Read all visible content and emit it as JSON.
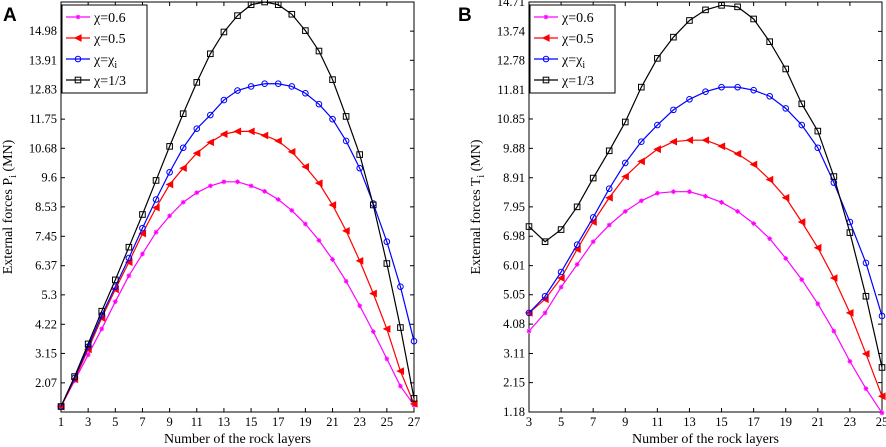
{
  "chart_data": [
    {
      "panel_label": "A",
      "type": "line",
      "xlabel": "Number of the rock layers",
      "ylabel_main": "External forces P",
      "ylabel_sub": "i",
      "ylabel_unit": " (MN)",
      "xlim": [
        1,
        27
      ],
      "ylim": [
        1.0,
        16.05
      ],
      "xticks": [
        1,
        3,
        5,
        7,
        9,
        11,
        13,
        15,
        17,
        19,
        21,
        23,
        25,
        27
      ],
      "yticks": [
        1.0,
        2.07,
        3.15,
        4.22,
        5.3,
        6.37,
        7.45,
        8.53,
        9.6,
        10.68,
        11.75,
        12.83,
        13.91,
        14.98
      ],
      "ytick_labels": [
        "",
        "2.07",
        "3.15",
        "4.22",
        "5.3",
        "6.37",
        "7.45",
        "8.53",
        "9.6",
        "10.68",
        "11.75",
        "12.83",
        "13.91",
        "14.98"
      ],
      "legend_position": "top-left",
      "legend_labels": [
        {
          "main": "χ=0.6",
          "sub": ""
        },
        {
          "main": "χ=0.5",
          "sub": ""
        },
        {
          "main": "χ=χ",
          "sub": "i"
        },
        {
          "main": "χ=1/3",
          "sub": ""
        }
      ],
      "series": [
        {
          "name": "χ=0.6",
          "marker": "star",
          "color": "#ff00ff",
          "x": [
            1,
            2,
            3,
            4,
            5,
            6,
            7,
            8,
            9,
            10,
            11,
            12,
            13,
            14,
            15,
            16,
            17,
            18,
            19,
            20,
            21,
            22,
            23,
            24,
            25,
            26,
            27
          ],
          "values": [
            1.2,
            2.15,
            3.1,
            4.05,
            5.05,
            6.0,
            6.8,
            7.6,
            8.2,
            8.7,
            9.05,
            9.3,
            9.45,
            9.45,
            9.3,
            9.1,
            8.8,
            8.4,
            7.9,
            7.3,
            6.6,
            5.8,
            4.9,
            3.95,
            2.95,
            1.95,
            1.25
          ]
        },
        {
          "name": "χ=0.5",
          "marker": "triangle-left",
          "color": "#ff0000",
          "x": [
            1,
            2,
            3,
            4,
            5,
            6,
            7,
            8,
            9,
            10,
            11,
            12,
            13,
            14,
            15,
            16,
            17,
            18,
            19,
            20,
            21,
            22,
            23,
            24,
            25,
            26,
            27
          ],
          "values": [
            1.2,
            2.2,
            3.3,
            4.45,
            5.5,
            6.5,
            7.55,
            8.5,
            9.35,
            9.95,
            10.5,
            10.9,
            11.2,
            11.3,
            11.3,
            11.15,
            10.95,
            10.55,
            10.0,
            9.4,
            8.6,
            7.65,
            6.55,
            5.35,
            4.05,
            2.5,
            1.3
          ]
        },
        {
          "name": "χ=χi",
          "marker": "circle",
          "color": "#0000ff",
          "x": [
            1,
            2,
            3,
            4,
            5,
            6,
            7,
            8,
            9,
            10,
            11,
            12,
            13,
            14,
            15,
            16,
            17,
            18,
            19,
            20,
            21,
            22,
            23,
            24,
            25,
            26,
            27
          ],
          "values": [
            1.2,
            2.25,
            3.4,
            4.55,
            5.6,
            6.65,
            7.75,
            8.8,
            9.8,
            10.7,
            11.4,
            11.9,
            12.45,
            12.8,
            12.95,
            13.05,
            13.05,
            12.95,
            12.7,
            12.3,
            11.75,
            10.95,
            9.95,
            8.65,
            7.25,
            5.6,
            3.6
          ]
        },
        {
          "name": "χ=1/3",
          "marker": "square",
          "color": "#000000",
          "x": [
            1,
            2,
            3,
            4,
            5,
            6,
            7,
            8,
            9,
            10,
            11,
            12,
            13,
            14,
            15,
            16,
            17,
            18,
            19,
            20,
            21,
            22,
            23,
            24,
            25,
            26,
            27
          ],
          "values": [
            1.2,
            2.3,
            3.5,
            4.7,
            5.85,
            7.05,
            8.25,
            9.5,
            10.75,
            11.95,
            13.1,
            14.15,
            14.95,
            15.55,
            15.95,
            16.05,
            15.95,
            15.6,
            15.0,
            14.25,
            13.2,
            11.85,
            10.45,
            8.6,
            6.45,
            4.1,
            1.5
          ]
        }
      ]
    },
    {
      "panel_label": "B",
      "type": "line",
      "xlabel": "Number of the rock layers",
      "ylabel_main": "External forces T",
      "ylabel_sub": "i",
      "ylabel_unit": " (MN)",
      "xlim": [
        3,
        25
      ],
      "ylim": [
        1.18,
        14.71
      ],
      "xticks": [
        3,
        5,
        7,
        9,
        11,
        13,
        15,
        17,
        19,
        21,
        23,
        25
      ],
      "yticks": [
        1.18,
        2.15,
        3.11,
        4.08,
        5.05,
        6.01,
        6.98,
        7.95,
        8.91,
        9.88,
        10.85,
        11.81,
        12.78,
        13.74,
        14.71
      ],
      "ytick_labels": [
        "1.18",
        "2.15",
        "3.11",
        "4.08",
        "5.05",
        "6.01",
        "6.98",
        "7.95",
        "8.91",
        "9.88",
        "10.85",
        "11.81",
        "12.78",
        "13.74",
        "14.71"
      ],
      "legend_position": "top-left",
      "legend_labels": [
        {
          "main": "χ=0.6",
          "sub": ""
        },
        {
          "main": "χ=0.5",
          "sub": ""
        },
        {
          "main": "χ=χ",
          "sub": "i"
        },
        {
          "main": "χ=1/3",
          "sub": ""
        }
      ],
      "series": [
        {
          "name": "χ=0.6",
          "marker": "star",
          "color": "#ff00ff",
          "x": [
            3,
            4,
            5,
            6,
            7,
            8,
            9,
            10,
            11,
            12,
            13,
            14,
            15,
            16,
            17,
            18,
            19,
            20,
            21,
            22,
            23,
            24,
            25
          ],
          "values": [
            3.85,
            4.45,
            5.3,
            6.05,
            6.8,
            7.35,
            7.8,
            8.15,
            8.4,
            8.45,
            8.45,
            8.3,
            8.1,
            7.8,
            7.4,
            6.9,
            6.25,
            5.55,
            4.75,
            3.85,
            2.85,
            1.95,
            1.15
          ]
        },
        {
          "name": "χ=0.5",
          "marker": "triangle-left",
          "color": "#ff0000",
          "x": [
            3,
            4,
            5,
            6,
            7,
            8,
            9,
            10,
            11,
            12,
            13,
            14,
            15,
            16,
            17,
            18,
            19,
            20,
            21,
            22,
            23,
            24,
            25
          ],
          "values": [
            4.45,
            4.9,
            5.6,
            6.55,
            7.45,
            8.25,
            8.95,
            9.45,
            9.85,
            10.1,
            10.15,
            10.15,
            9.95,
            9.7,
            9.35,
            8.85,
            8.25,
            7.45,
            6.6,
            5.6,
            4.45,
            3.1,
            1.7
          ]
        },
        {
          "name": "χ=χi",
          "marker": "circle",
          "color": "#0000ff",
          "x": [
            3,
            4,
            5,
            6,
            7,
            8,
            9,
            10,
            11,
            12,
            13,
            14,
            15,
            16,
            17,
            18,
            19,
            20,
            21,
            22,
            23,
            24,
            25
          ],
          "values": [
            4.45,
            5.0,
            5.8,
            6.7,
            7.6,
            8.55,
            9.4,
            10.1,
            10.65,
            11.15,
            11.5,
            11.75,
            11.9,
            11.9,
            11.8,
            11.6,
            11.2,
            10.65,
            9.9,
            8.75,
            7.45,
            6.1,
            4.35
          ]
        },
        {
          "name": "χ=1/3",
          "marker": "square",
          "color": "#000000",
          "x": [
            3,
            4,
            5,
            6,
            7,
            8,
            9,
            10,
            11,
            12,
            13,
            14,
            15,
            16,
            17,
            18,
            19,
            20,
            21,
            22,
            23,
            24,
            25
          ],
          "values": [
            7.3,
            6.8,
            7.2,
            7.95,
            8.9,
            9.8,
            10.75,
            11.9,
            12.85,
            13.55,
            14.1,
            14.45,
            14.6,
            14.55,
            14.15,
            13.4,
            12.5,
            11.35,
            10.45,
            8.95,
            7.1,
            5.0,
            2.65
          ]
        }
      ]
    }
  ]
}
